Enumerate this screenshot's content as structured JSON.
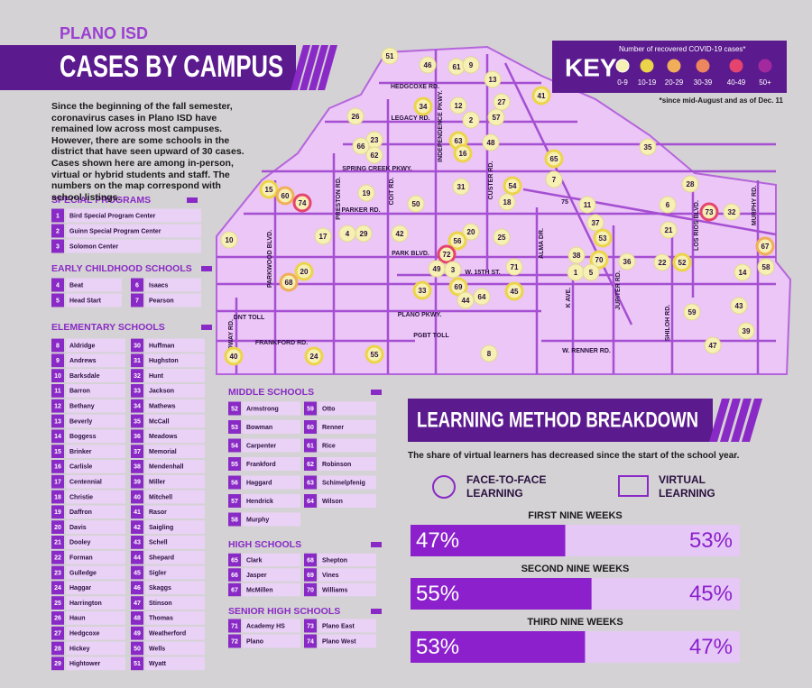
{
  "header": {
    "org": "PLANO ISD",
    "title": "CASES BY CAMPUS"
  },
  "intro": "Since the beginning of the fall semester, coronavirus cases in Plano ISD have remained low across most campuses. However, there are some schools in the district that have seen upward of 30 cases. Cases shown here are among in-person, virtual or hybrid students and staff. The numbers on the map correspond with school listings.",
  "key": {
    "title": "KEY",
    "caption": "Number of recovered COVID-19 cases*",
    "footnote": "*since mid-August and as of Dec. 11",
    "levels": [
      {
        "label": "0-9",
        "color": "#f6f0b4"
      },
      {
        "label": "10-19",
        "color": "#ecd44a"
      },
      {
        "label": "20-29",
        "color": "#f0ae5a"
      },
      {
        "label": "30-39",
        "color": "#ec865e"
      },
      {
        "label": "40-49",
        "color": "#e4446e"
      },
      {
        "label": "50+",
        "color": "#a22a9e"
      }
    ]
  },
  "sections": [
    {
      "title": "SPECIAL PROGRAMS",
      "entries": [
        [
          "1",
          "Bird Special Program Center"
        ],
        [
          "2",
          "Guinn Special Program Center"
        ],
        [
          "3",
          "Solomon Center"
        ]
      ]
    },
    {
      "title": "EARLY CHILDHOOD SCHOOLS",
      "entries": [
        [
          "4",
          "Beat"
        ],
        [
          "5",
          "Head Start"
        ],
        [
          "6",
          "Isaacs"
        ],
        [
          "7",
          "Pearson"
        ]
      ]
    },
    {
      "title": "ELEMENTARY SCHOOLS",
      "entries": [
        [
          "8",
          "Aldridge"
        ],
        [
          "9",
          "Andrews"
        ],
        [
          "10",
          "Barksdale"
        ],
        [
          "11",
          "Barron"
        ],
        [
          "12",
          "Bethany"
        ],
        [
          "13",
          "Beverly"
        ],
        [
          "14",
          "Boggess"
        ],
        [
          "15",
          "Brinker"
        ],
        [
          "16",
          "Carlisle"
        ],
        [
          "17",
          "Centennial"
        ],
        [
          "18",
          "Christie"
        ],
        [
          "19",
          "Daffron"
        ],
        [
          "20",
          "Davis"
        ],
        [
          "21",
          "Dooley"
        ],
        [
          "22",
          "Forman"
        ],
        [
          "23",
          "Gulledge"
        ],
        [
          "24",
          "Haggar"
        ],
        [
          "25",
          "Harrington"
        ],
        [
          "26",
          "Haun"
        ],
        [
          "27",
          "Hedgcoxe"
        ],
        [
          "28",
          "Hickey"
        ],
        [
          "29",
          "Hightower"
        ],
        [
          "30",
          "Huffman"
        ],
        [
          "31",
          "Hughston"
        ],
        [
          "32",
          "Hunt"
        ],
        [
          "33",
          "Jackson"
        ],
        [
          "34",
          "Mathews"
        ],
        [
          "35",
          "McCall"
        ],
        [
          "36",
          "Meadows"
        ],
        [
          "37",
          "Memorial"
        ],
        [
          "38",
          "Mendenhall"
        ],
        [
          "39",
          "Miller"
        ],
        [
          "40",
          "Mitchell"
        ],
        [
          "41",
          "Rasor"
        ],
        [
          "42",
          "Saigling"
        ],
        [
          "43",
          "Schell"
        ],
        [
          "44",
          "Shepard"
        ],
        [
          "45",
          "Sigler"
        ],
        [
          "46",
          "Skaggs"
        ],
        [
          "47",
          "Stinson"
        ],
        [
          "48",
          "Thomas"
        ],
        [
          "49",
          "Weatherford"
        ],
        [
          "50",
          "Wells"
        ],
        [
          "51",
          "Wyatt"
        ]
      ]
    },
    {
      "title": "MIDDLE SCHOOLS",
      "entries": [
        [
          "52",
          "Armstrong"
        ],
        [
          "53",
          "Bowman"
        ],
        [
          "54",
          "Carpenter"
        ],
        [
          "55",
          "Frankford"
        ],
        [
          "56",
          "Haggard"
        ],
        [
          "57",
          "Hendrick"
        ],
        [
          "58",
          "Murphy"
        ],
        [
          "59",
          "Otto"
        ],
        [
          "60",
          "Renner"
        ],
        [
          "61",
          "Rice"
        ],
        [
          "62",
          "Robinson"
        ],
        [
          "63",
          "Schimelpfenig"
        ],
        [
          "64",
          "Wilson"
        ]
      ]
    },
    {
      "title": "HIGH SCHOOLS",
      "entries": [
        [
          "65",
          "Clark"
        ],
        [
          "66",
          "Jasper"
        ],
        [
          "67",
          "McMillen"
        ],
        [
          "68",
          "Shepton"
        ],
        [
          "69",
          "Vines"
        ],
        [
          "70",
          "Williams"
        ]
      ]
    },
    {
      "title": "SENIOR HIGH SCHOOLS",
      "entries": [
        [
          "71",
          "Academy HS"
        ],
        [
          "72",
          "Plano"
        ],
        [
          "73",
          "Plano East"
        ],
        [
          "74",
          "Plano West"
        ]
      ]
    }
  ],
  "map": {
    "roads": [
      "HEDGCOXE RD.",
      "LEGACY RD.",
      "INDEPENDENCE PKWY.",
      "SPRING CREEK PKWY.",
      "PARKER RD.",
      "PRESTON RD.",
      "COIT RD.",
      "PARK BLVD.",
      "W. 15TH ST.",
      "ALMA DR.",
      "PLANO PKWY.",
      "K AVE.",
      "JUPITER RD.",
      "W. RENNER RD.",
      "SHILOH RD.",
      "LOS RIOS BLVD.",
      "MURPHY RD.",
      "MIDWAY RD.",
      "PARKWOOD BLVD.",
      "FRANKFORD RD.",
      "CUSTER RD.",
      "DNT TOLL",
      "PGBT TOLL",
      "75"
    ],
    "markers": [
      {
        "label": "51",
        "level": 0
      },
      {
        "label": "46",
        "level": 0
      },
      {
        "label": "61",
        "level": 0
      },
      {
        "label": "9",
        "level": 0
      },
      {
        "label": "13",
        "level": 0
      },
      {
        "label": "41",
        "level": 1
      },
      {
        "label": "34",
        "level": 1
      },
      {
        "label": "12",
        "level": 0
      },
      {
        "label": "27",
        "level": 0
      },
      {
        "label": "2",
        "level": 0
      },
      {
        "label": "57",
        "level": 0
      },
      {
        "label": "26",
        "level": 0
      },
      {
        "label": "23",
        "level": 0
      },
      {
        "label": "66",
        "level": 0
      },
      {
        "label": "62",
        "level": 0
      },
      {
        "label": "63",
        "level": 1
      },
      {
        "label": "16",
        "level": 1
      },
      {
        "label": "48",
        "level": 0
      },
      {
        "label": "35",
        "level": 0
      },
      {
        "label": "65",
        "level": 1
      },
      {
        "label": "7",
        "level": 0
      },
      {
        "label": "28",
        "level": 0
      },
      {
        "label": "15",
        "level": 1
      },
      {
        "label": "60",
        "level": 2
      },
      {
        "label": "74",
        "level": 4
      },
      {
        "label": "19",
        "level": 0
      },
      {
        "label": "50",
        "level": 0
      },
      {
        "label": "31",
        "level": 0
      },
      {
        "label": "54",
        "level": 1
      },
      {
        "label": "18",
        "level": 0
      },
      {
        "label": "11",
        "level": 0
      },
      {
        "label": "6",
        "level": 0
      },
      {
        "label": "73",
        "level": 4
      },
      {
        "label": "32",
        "level": 0
      },
      {
        "label": "37",
        "level": 0
      },
      {
        "label": "21",
        "level": 0
      },
      {
        "label": "10",
        "level": 0
      },
      {
        "label": "17",
        "level": 0
      },
      {
        "label": "4",
        "level": 0
      },
      {
        "label": "29",
        "level": 0
      },
      {
        "label": "42",
        "level": 0
      },
      {
        "label": "20",
        "level": 0
      },
      {
        "label": "56",
        "level": 1
      },
      {
        "label": "25",
        "level": 0
      },
      {
        "label": "72",
        "level": 4
      },
      {
        "label": "53",
        "level": 1
      },
      {
        "label": "67",
        "level": 2
      },
      {
        "label": "38",
        "level": 0
      },
      {
        "label": "70",
        "level": 1
      },
      {
        "label": "36",
        "level": 0
      },
      {
        "label": "22",
        "level": 0
      },
      {
        "label": "52",
        "level": 1
      },
      {
        "label": "58",
        "level": 0
      },
      {
        "label": "14",
        "level": 0
      },
      {
        "label": "49",
        "level": 0
      },
      {
        "label": "3",
        "level": 0
      },
      {
        "label": "71",
        "level": 0
      },
      {
        "label": "1",
        "level": 0
      },
      {
        "label": "5",
        "level": 0
      },
      {
        "label": "20",
        "level": 1
      },
      {
        "label": "68",
        "level": 2
      },
      {
        "label": "69",
        "level": 1
      },
      {
        "label": "44",
        "level": 0
      },
      {
        "label": "64",
        "level": 0
      },
      {
        "label": "33",
        "level": 1
      },
      {
        "label": "45",
        "level": 1
      },
      {
        "label": "43",
        "level": 0
      },
      {
        "label": "59",
        "level": 0
      },
      {
        "label": "39",
        "level": 0
      },
      {
        "label": "47",
        "level": 0
      },
      {
        "label": "8",
        "level": 0
      },
      {
        "label": "40",
        "level": 1
      },
      {
        "label": "24",
        "level": 1
      },
      {
        "label": "55",
        "level": 1
      }
    ]
  },
  "learning": {
    "title": "LEARNING METHOD BREAKDOWN",
    "subtitle": "The share of virtual learners has decreased since the start of the school year.",
    "legend": [
      "FACE-TO-FACE LEARNING",
      "VIRTUAL LEARNING"
    ],
    "periods": [
      {
        "title": "FIRST NINE WEEKS",
        "values": [
          47,
          53
        ],
        "value_labels": [
          "47%",
          "53%"
        ]
      },
      {
        "title": "SECOND NINE WEEKS",
        "values": [
          55,
          45
        ],
        "value_labels": [
          "55%",
          "45%"
        ]
      },
      {
        "title": "THIRD NINE WEEKS",
        "values": [
          53,
          47
        ],
        "value_labels": [
          "53%",
          "47%"
        ]
      }
    ]
  }
}
